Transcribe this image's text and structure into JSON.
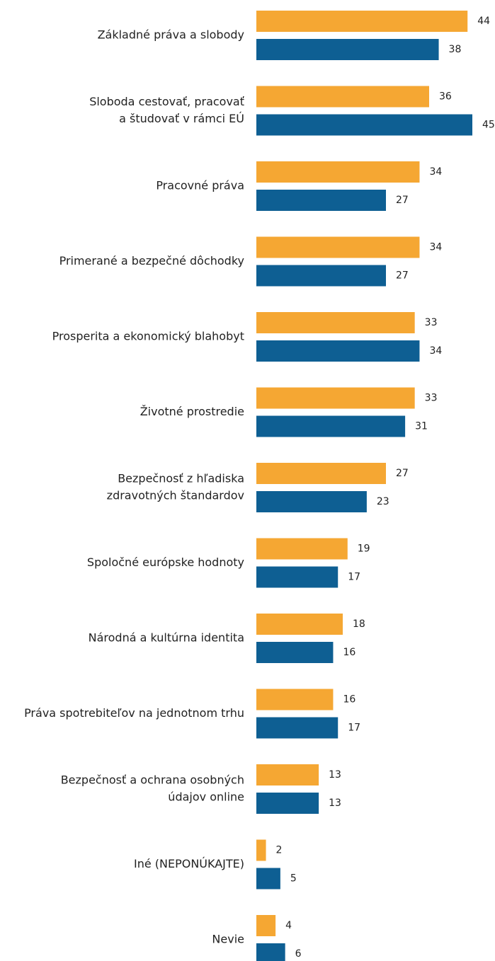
{
  "chart_data": {
    "type": "bar",
    "orientation": "horizontal",
    "categories": [
      [
        "Základné práva a slobody"
      ],
      [
        "Sloboda cestovať, pracovať",
        "a študovať v rámci EÚ"
      ],
      [
        "Pracovné práva"
      ],
      [
        "Primerané a bezpečné dôchodky"
      ],
      [
        "Prosperita a ekonomický blahobyt"
      ],
      [
        "Životné prostredie"
      ],
      [
        "Bezpečnosť z hľadiska",
        "zdravotných štandardov"
      ],
      [
        "Spoločné európske hodnoty"
      ],
      [
        "Národná a kultúrna identita"
      ],
      [
        "Práva spotrebiteľov na jednotnom trhu"
      ],
      [
        "Bezpečnosť a ochrana osobných",
        "údajov online"
      ],
      [
        "Iné (NEPONÚKAJTE)"
      ],
      [
        "Nevie"
      ]
    ],
    "series": [
      {
        "color": "#f5a733",
        "values": [
          44,
          36,
          34,
          34,
          33,
          33,
          27,
          19,
          18,
          16,
          13,
          2,
          4
        ]
      },
      {
        "color": "#0e5f93",
        "values": [
          38,
          45,
          27,
          27,
          34,
          31,
          23,
          17,
          16,
          17,
          13,
          5,
          6
        ]
      }
    ]
  }
}
